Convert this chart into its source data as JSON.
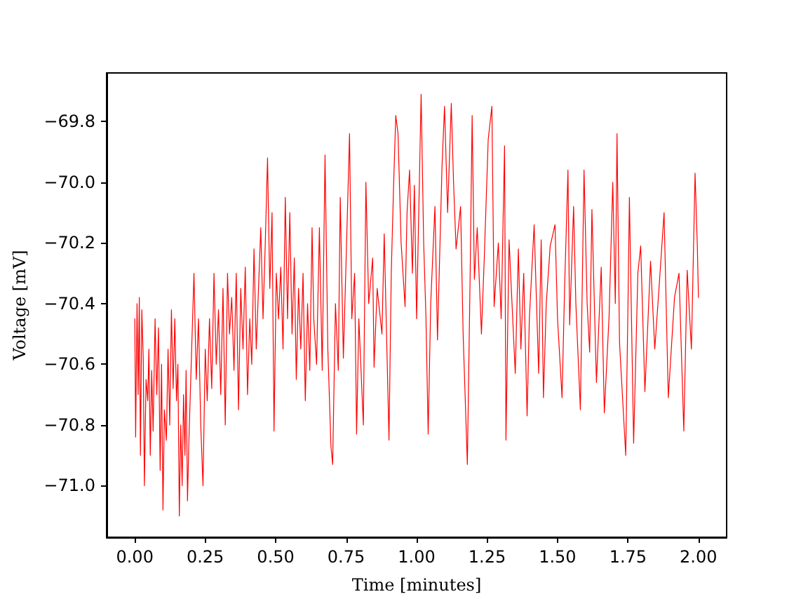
{
  "chart_data": {
    "type": "line",
    "xlabel": "Time [minutes]",
    "ylabel": "Voltage [mV]",
    "grid": false,
    "marker": "none",
    "line_style": "solid",
    "xlim": [
      -0.1,
      2.1
    ],
    "ylim": [
      -71.17,
      -69.64
    ],
    "xticks": [
      {
        "value": 0,
        "label": "0.00"
      },
      {
        "value": 0.25,
        "label": "0.25"
      },
      {
        "value": 0.5,
        "label": "0.50"
      },
      {
        "value": 0.75,
        "label": "0.75"
      },
      {
        "value": 1,
        "label": "1.00"
      },
      {
        "value": 1.25,
        "label": "1.25"
      },
      {
        "value": 1.5,
        "label": "1.50"
      },
      {
        "value": 1.75,
        "label": "1.75"
      },
      {
        "value": 2,
        "label": "2.00"
      }
    ],
    "yticks": [
      {
        "value": -71.0,
        "label": "−71.0"
      },
      {
        "value": -70.8,
        "label": "−70.8"
      },
      {
        "value": -70.6,
        "label": "−70.6"
      },
      {
        "value": -70.4,
        "label": "−70.4"
      },
      {
        "value": -70.2,
        "label": "−70.2"
      },
      {
        "value": -70.0,
        "label": "−70.0"
      },
      {
        "value": -69.8,
        "label": "−69.8"
      }
    ],
    "series": [
      {
        "color": "#ff0000",
        "x": [
          0.0,
          0.003,
          0.008,
          0.012,
          0.016,
          0.02,
          0.025,
          0.03,
          0.034,
          0.04,
          0.046,
          0.05,
          0.055,
          0.06,
          0.065,
          0.072,
          0.078,
          0.084,
          0.09,
          0.095,
          0.1,
          0.105,
          0.112,
          0.118,
          0.124,
          0.13,
          0.136,
          0.142,
          0.148,
          0.153,
          0.158,
          0.163,
          0.168,
          0.173,
          0.178,
          0.182,
          0.187,
          0.192,
          0.21,
          0.218,
          0.226,
          0.234,
          0.242,
          0.25,
          0.257,
          0.265,
          0.273,
          0.281,
          0.289,
          0.297,
          0.305,
          0.313,
          0.321,
          0.329,
          0.336,
          0.344,
          0.352,
          0.36,
          0.368,
          0.376,
          0.384,
          0.392,
          0.4,
          0.408,
          0.415,
          0.423,
          0.431,
          0.439,
          0.447,
          0.455,
          0.463,
          0.471,
          0.479,
          0.487,
          0.494,
          0.502,
          0.51,
          0.518,
          0.526,
          0.534,
          0.542,
          0.55,
          0.558,
          0.566,
          0.573,
          0.581,
          0.589,
          0.597,
          0.605,
          0.613,
          0.621,
          0.629,
          0.635,
          0.645,
          0.655,
          0.665,
          0.675,
          0.685,
          0.696,
          0.702,
          0.712,
          0.722,
          0.729,
          0.74,
          0.75,
          0.762,
          0.77,
          0.78,
          0.787,
          0.795,
          0.811,
          0.82,
          0.83,
          0.844,
          0.849,
          0.86,
          0.877,
          0.885,
          0.902,
          0.91,
          0.918,
          0.926,
          0.934,
          0.945,
          0.959,
          0.966,
          0.975,
          0.985,
          0.992,
          1.0,
          1.016,
          1.025,
          1.033,
          1.041,
          1.05,
          1.065,
          1.074,
          1.09,
          1.099,
          1.11,
          1.123,
          1.131,
          1.14,
          1.156,
          1.165,
          1.18,
          1.19,
          1.197,
          1.205,
          1.215,
          1.23,
          1.24,
          1.254,
          1.267,
          1.275,
          1.29,
          1.3,
          1.312,
          1.317,
          1.328,
          1.35,
          1.361,
          1.37,
          1.38,
          1.392,
          1.4,
          1.417,
          1.433,
          1.442,
          1.45,
          1.46,
          1.474,
          1.491,
          1.5,
          1.516,
          1.525,
          1.537,
          1.543,
          1.557,
          1.565,
          1.581,
          1.594,
          1.605,
          1.614,
          1.622,
          1.638,
          1.655,
          1.666,
          1.683,
          1.696,
          1.705,
          1.711,
          1.72,
          1.742,
          1.75,
          1.755,
          1.77,
          1.785,
          1.795,
          1.81,
          1.83,
          1.845,
          1.86,
          1.878,
          1.893,
          1.915,
          1.931,
          1.948,
          1.96,
          1.975,
          1.988,
          1.996,
          2.0
        ],
        "values": [
          -70.45,
          -70.84,
          -70.4,
          -70.7,
          -70.38,
          -70.9,
          -70.42,
          -70.58,
          -71.0,
          -70.65,
          -70.72,
          -70.55,
          -70.9,
          -70.62,
          -70.82,
          -70.45,
          -70.7,
          -70.48,
          -70.95,
          -70.6,
          -71.08,
          -70.75,
          -70.85,
          -70.55,
          -70.8,
          -70.42,
          -70.68,
          -70.45,
          -70.72,
          -70.6,
          -71.1,
          -70.8,
          -71.0,
          -70.7,
          -70.9,
          -70.62,
          -71.05,
          -70.85,
          -70.3,
          -70.65,
          -70.45,
          -70.8,
          -71.0,
          -70.55,
          -70.72,
          -70.45,
          -70.68,
          -70.3,
          -70.6,
          -70.42,
          -70.7,
          -70.35,
          -70.8,
          -70.3,
          -70.5,
          -70.38,
          -70.62,
          -70.3,
          -70.75,
          -70.35,
          -70.55,
          -70.28,
          -70.7,
          -70.45,
          -70.6,
          -70.22,
          -70.55,
          -70.35,
          -70.15,
          -70.45,
          -70.2,
          -69.92,
          -70.35,
          -70.1,
          -70.82,
          -70.3,
          -70.45,
          -70.28,
          -70.55,
          -70.05,
          -70.45,
          -70.1,
          -70.5,
          -70.25,
          -70.65,
          -70.35,
          -70.55,
          -70.3,
          -70.72,
          -70.4,
          -70.62,
          -70.15,
          -70.45,
          -70.6,
          -70.15,
          -70.62,
          -69.91,
          -70.55,
          -70.87,
          -70.93,
          -70.4,
          -70.62,
          -70.05,
          -70.58,
          -70.25,
          -69.84,
          -70.45,
          -70.3,
          -70.83,
          -70.45,
          -70.8,
          -70.0,
          -70.4,
          -70.25,
          -70.61,
          -70.35,
          -70.5,
          -70.17,
          -70.85,
          -70.3,
          -70.02,
          -69.78,
          -69.84,
          -70.2,
          -70.41,
          -70.1,
          -69.96,
          -70.3,
          -70.01,
          -70.45,
          -69.71,
          -70.2,
          -70.44,
          -70.83,
          -70.4,
          -70.08,
          -70.52,
          -69.95,
          -69.75,
          -70.1,
          -69.74,
          -70.0,
          -70.22,
          -70.08,
          -70.5,
          -70.93,
          -70.3,
          -69.78,
          -70.32,
          -70.15,
          -70.5,
          -70.25,
          -69.86,
          -69.75,
          -70.41,
          -70.2,
          -70.45,
          -69.88,
          -70.85,
          -70.19,
          -70.63,
          -70.22,
          -70.55,
          -70.3,
          -70.77,
          -70.45,
          -70.14,
          -70.63,
          -70.19,
          -70.71,
          -70.4,
          -70.21,
          -70.14,
          -70.45,
          -70.71,
          -70.35,
          -69.96,
          -70.47,
          -70.08,
          -70.4,
          -70.75,
          -69.96,
          -70.4,
          -70.56,
          -70.09,
          -70.66,
          -70.28,
          -70.76,
          -70.44,
          -70.0,
          -70.4,
          -69.84,
          -70.53,
          -70.9,
          -70.4,
          -70.05,
          -70.86,
          -70.3,
          -70.21,
          -70.69,
          -70.26,
          -70.55,
          -70.35,
          -70.1,
          -70.71,
          -70.38,
          -70.3,
          -70.82,
          -70.29,
          -70.55,
          -69.97,
          -70.21,
          -70.38
        ]
      }
    ]
  }
}
